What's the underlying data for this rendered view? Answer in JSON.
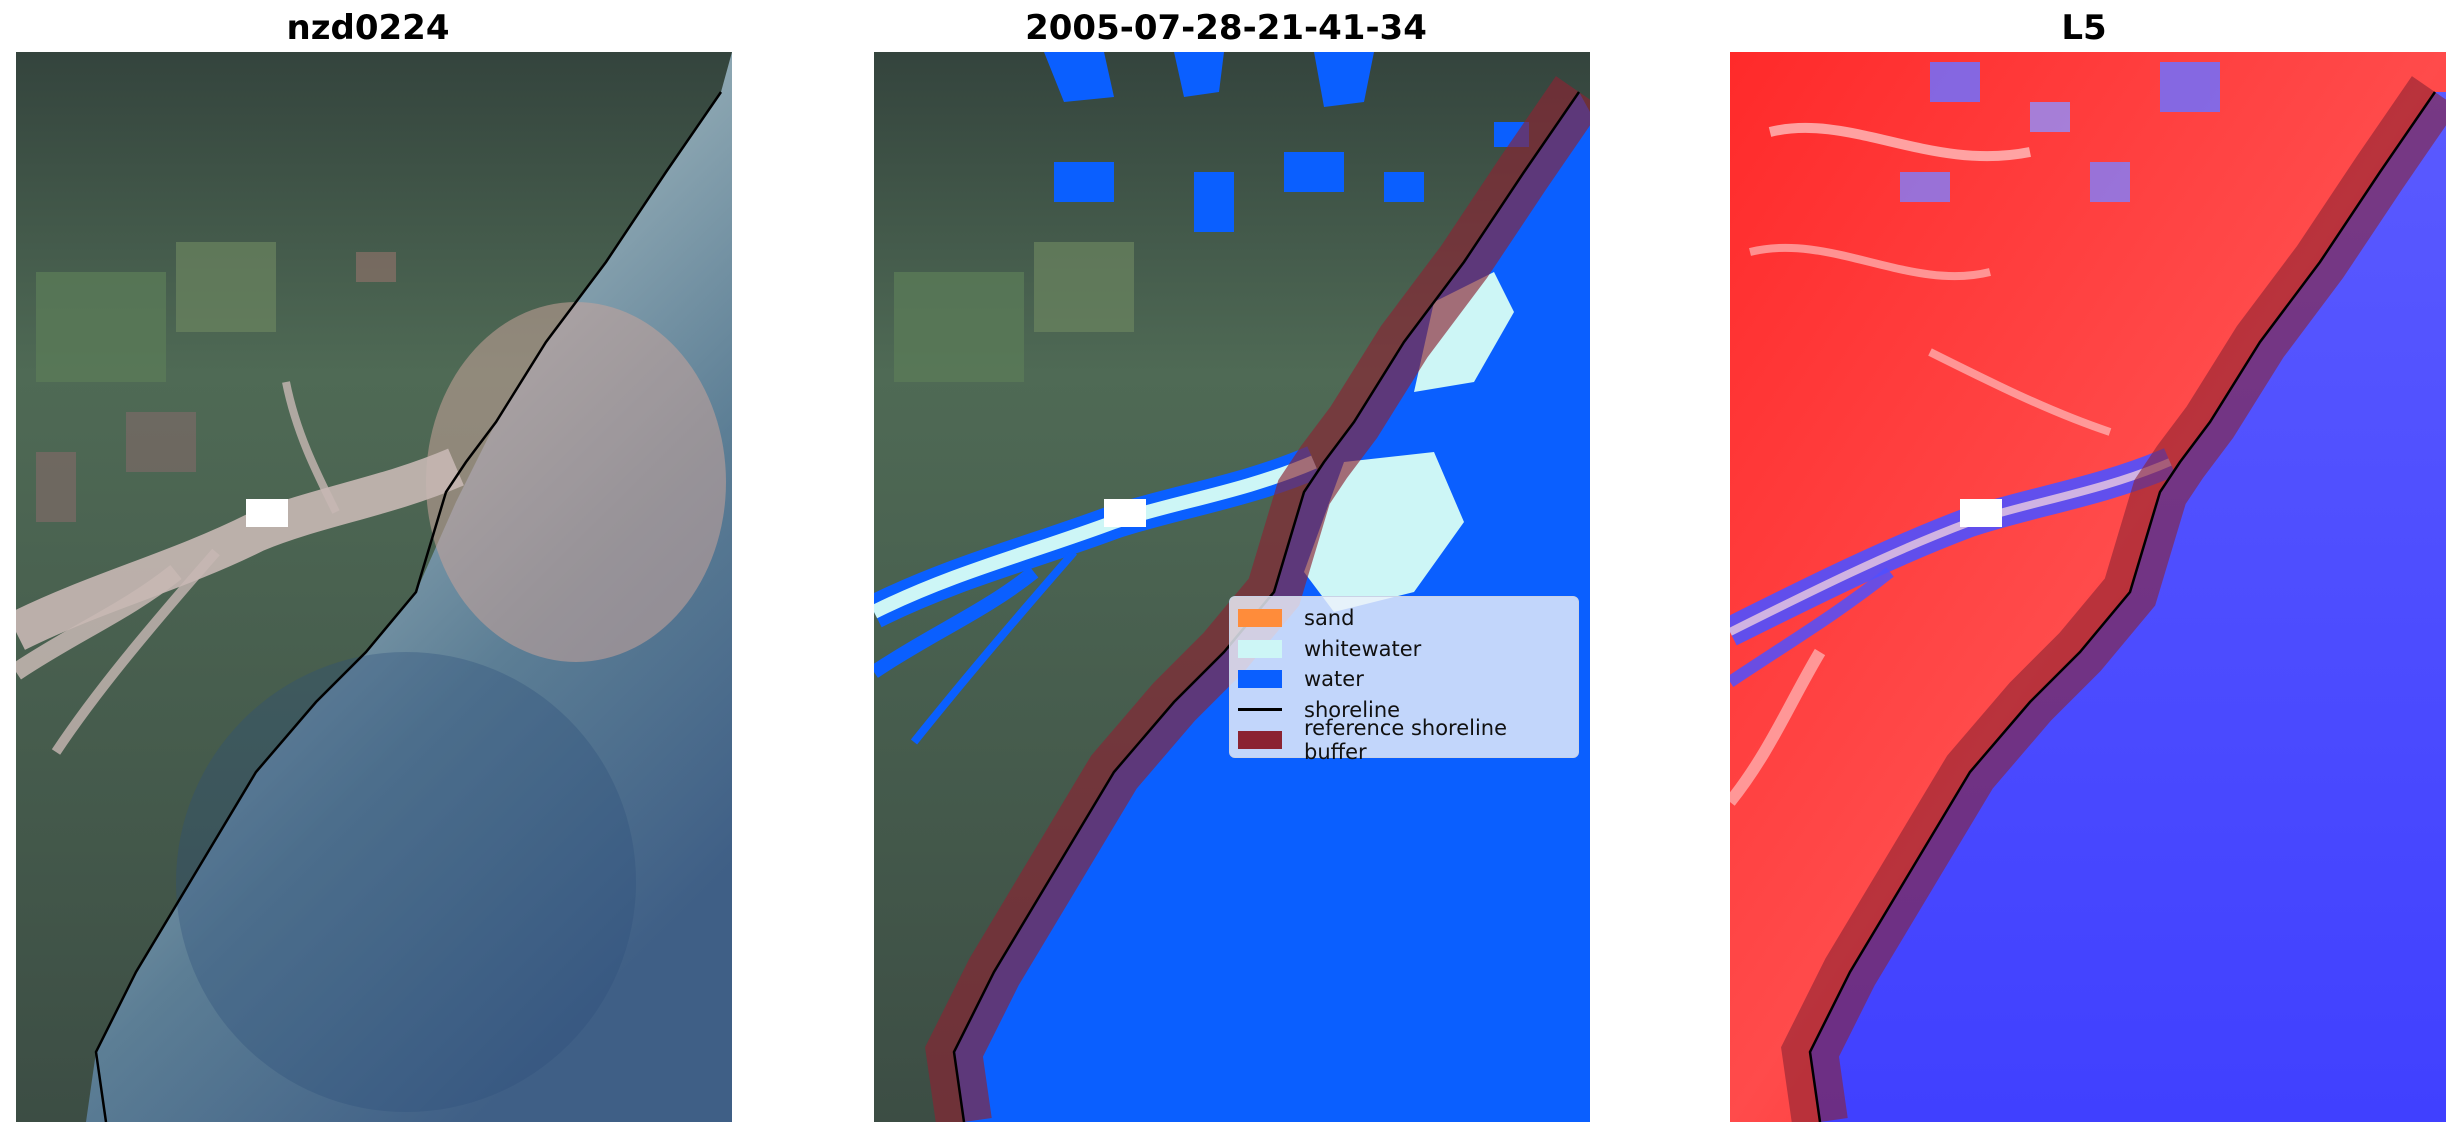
{
  "panels": [
    {
      "title": "nzd0224"
    },
    {
      "title": "2005-07-28-21-41-34"
    },
    {
      "title": "L5"
    }
  ],
  "legend": {
    "items": [
      {
        "label": "sand",
        "color": "#ff8c3a",
        "kind": "patch"
      },
      {
        "label": "whitewater",
        "color": "#cdf6f6",
        "kind": "patch"
      },
      {
        "label": "water",
        "color": "#0a5fff",
        "kind": "patch"
      },
      {
        "label": "shoreline",
        "color": "#000000",
        "kind": "line"
      },
      {
        "label": "reference shoreline buffer",
        "color": "#8b2332",
        "kind": "patch"
      }
    ]
  },
  "colors": {
    "land_dark": "#3b4d45",
    "land_green": "#55705a",
    "sea_light": "#8fb5bf",
    "sea_dark": "#3f5f86",
    "river": "#c8b8b4",
    "water_class": "#0a5fff",
    "whitewater_class": "#cdf6f6",
    "buffer": "#8b2332",
    "index_positive": "#ff1a1a",
    "index_negative": "#3a3aff"
  }
}
